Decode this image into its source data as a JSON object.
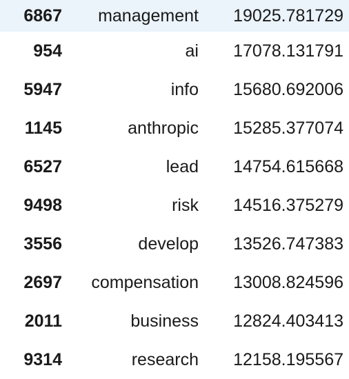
{
  "table": {
    "highlight_color": "#ebf3fb",
    "rows": [
      {
        "index": "6867",
        "term": "management",
        "score": "19025.781729"
      },
      {
        "index": "954",
        "term": "ai",
        "score": "17078.131791"
      },
      {
        "index": "5947",
        "term": "info",
        "score": "15680.692006"
      },
      {
        "index": "1145",
        "term": "anthropic",
        "score": "15285.377074"
      },
      {
        "index": "6527",
        "term": "lead",
        "score": "14754.615668"
      },
      {
        "index": "9498",
        "term": "risk",
        "score": "14516.375279"
      },
      {
        "index": "3556",
        "term": "develop",
        "score": "13526.747383"
      },
      {
        "index": "2697",
        "term": "compensation",
        "score": "13008.824596"
      },
      {
        "index": "2011",
        "term": "business",
        "score": "12824.403413"
      },
      {
        "index": "9314",
        "term": "research",
        "score": "12158.195567"
      }
    ]
  }
}
